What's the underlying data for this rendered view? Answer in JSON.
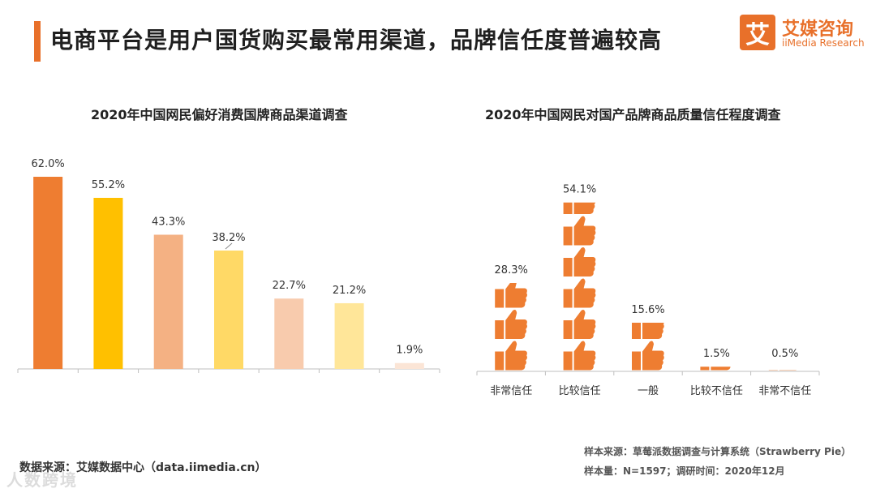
{
  "header": {
    "title": "电商平台是用户国货购买最常用渠道，品牌信任度普遍较高"
  },
  "logo": {
    "mark": "艾",
    "name_cn": "艾媒咨询",
    "name_en": "iiMedia Research"
  },
  "colors": {
    "accent": "#e8702a",
    "thumb": "#ee7d31"
  },
  "chart_data": [
    {
      "type": "bar",
      "title": "2020年中国网民偏好消费国牌商品渠道调查",
      "categories": [],
      "values": [
        62.0,
        55.2,
        43.3,
        38.2,
        22.7,
        21.2,
        1.9
      ],
      "labels": [
        "62.0%",
        "55.2%",
        "43.3%",
        "38.2%",
        "22.7%",
        "21.2%",
        "1.9%"
      ],
      "colors": [
        "#ee7d31",
        "#ffc000",
        "#f4b183",
        "#ffd966",
        "#f8cbad",
        "#ffe699",
        "#fbe5d6"
      ],
      "ylim": [
        0,
        65
      ],
      "xlabel": "",
      "ylabel": ""
    },
    {
      "type": "bar",
      "subtype": "pictograph",
      "title": "2020年中国网民对国产品牌商品质量信任程度调查",
      "categories": [
        "非常信任",
        "比较信任",
        "一般",
        "比较不信任",
        "非常不信任"
      ],
      "values": [
        28.3,
        54.1,
        15.6,
        1.5,
        0.5
      ],
      "labels": [
        "28.3%",
        "54.1%",
        "15.6%",
        "1.5%",
        "0.5%"
      ],
      "unit_per_icon": 10,
      "xlabel": "",
      "ylabel": ""
    }
  ],
  "footer": {
    "source": "数据来源：艾媒数据中心（data.iimedia.cn）",
    "sample_source": "样本来源：草莓派数据调查与计算系统（Strawberry Pie）",
    "sample_info": "样本量：N=1597；调研时间：2020年12月"
  },
  "watermark": "人数跨境"
}
